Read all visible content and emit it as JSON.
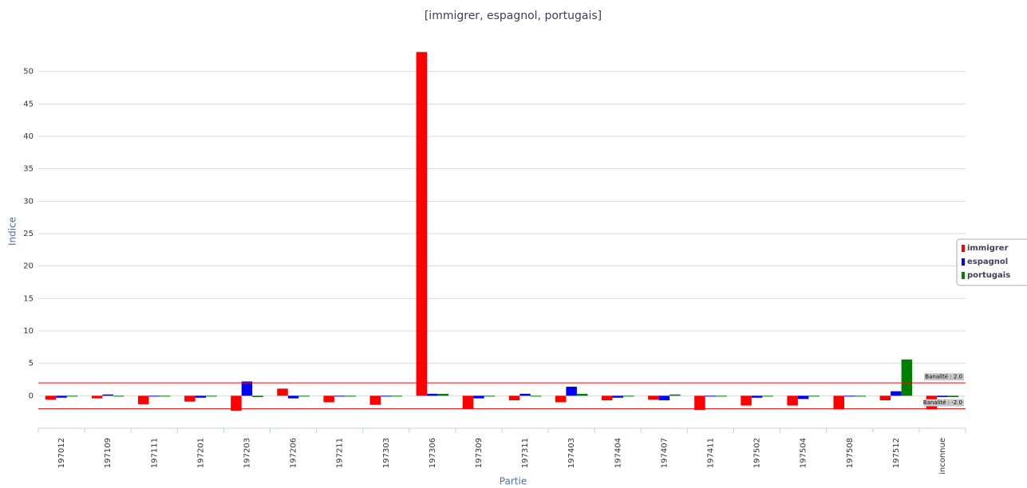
{
  "chart_data": {
    "type": "bar",
    "title": "[immigrer, espagnol, portugais]",
    "x_label": "Partie",
    "y_label": "Indice",
    "categories": [
      "197012",
      "197109",
      "197111",
      "197201",
      "197203",
      "197206",
      "197211",
      "197303",
      "197306",
      "197309",
      "197311",
      "197403",
      "197404",
      "197407",
      "197411",
      "197502",
      "197504",
      "197508",
      "197512",
      "inconnue"
    ],
    "series": [
      {
        "name": "immigrer",
        "color": "#ff0000",
        "values": [
          -0.6,
          -0.4,
          -1.3,
          -0.9,
          -2.3,
          1.1,
          -1.0,
          -1.4,
          53,
          -2.0,
          -0.7,
          -1.0,
          -0.7,
          -0.6,
          -2.2,
          -1.5,
          -1.5,
          -2.1,
          -0.7,
          -2.1
        ]
      },
      {
        "name": "espagnol",
        "color": "#0000ff",
        "values": [
          -0.3,
          0.2,
          -0.1,
          -0.3,
          2.2,
          -0.4,
          -0.1,
          -0.1,
          0.3,
          -0.4,
          0.3,
          1.4,
          -0.3,
          -0.7,
          -0.1,
          -0.3,
          -0.5,
          -0.1,
          0.7,
          -0.2
        ]
      },
      {
        "name": "portugais",
        "color": "#008000",
        "values": [
          -0.1,
          -0.1,
          -0.1,
          -0.1,
          -0.2,
          -0.1,
          -0.1,
          -0.1,
          0.3,
          -0.1,
          -0.1,
          0.3,
          -0.1,
          0.2,
          -0.1,
          -0.1,
          -0.1,
          -0.1,
          5.6,
          -0.2
        ]
      }
    ],
    "ylim": [
      -5,
      55
    ],
    "yticks": [
      0,
      5,
      10,
      15,
      20,
      25,
      30,
      35,
      40,
      45,
      50
    ],
    "grid": true,
    "plot_lines": [
      {
        "value": 2,
        "label": "Banalité : 2.0"
      },
      {
        "value": -2,
        "label": "Banalité : -2.0"
      }
    ],
    "legend": "right"
  }
}
